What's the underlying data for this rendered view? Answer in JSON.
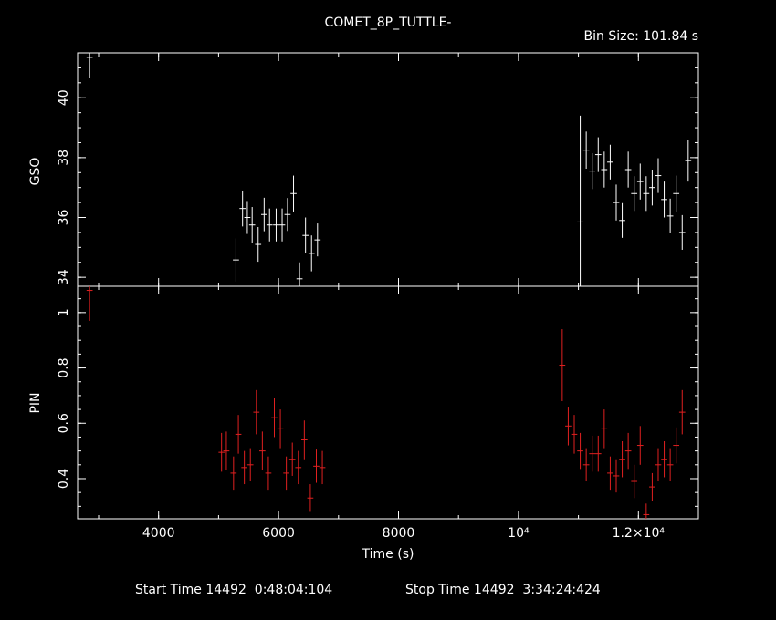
{
  "title": "COMET_8P_TUTTLE-",
  "bin_size": "Bin Size: 101.84 s",
  "footer": {
    "start": "Start Time 14492  0:48:04:104",
    "stop": "Stop Time 14492  3:34:24:424"
  },
  "colors": {
    "gso": "#ffffff",
    "pin": "#e02020"
  },
  "chart_data": [
    {
      "type": "scatter",
      "ylabel": "GSO",
      "xlim": [
        2650,
        13000
      ],
      "ylim": [
        33.7,
        41.5
      ],
      "yticks": [
        "34",
        "36",
        "38",
        "40"
      ],
      "xerr": 50.9,
      "points": [
        {
          "x": 2850,
          "y": 41.35,
          "e": 0.7
        },
        {
          "x": 5290,
          "y": 34.58,
          "e": 0.72
        },
        {
          "x": 5400,
          "y": 36.3,
          "e": 0.6
        },
        {
          "x": 5480,
          "y": 36.0,
          "e": 0.55
        },
        {
          "x": 5560,
          "y": 35.75,
          "e": 0.6
        },
        {
          "x": 5660,
          "y": 35.1,
          "e": 0.58
        },
        {
          "x": 5760,
          "y": 36.1,
          "e": 0.56
        },
        {
          "x": 5850,
          "y": 35.75,
          "e": 0.55
        },
        {
          "x": 5960,
          "y": 35.75,
          "e": 0.55
        },
        {
          "x": 6060,
          "y": 35.75,
          "e": 0.55
        },
        {
          "x": 6150,
          "y": 36.1,
          "e": 0.55
        },
        {
          "x": 6250,
          "y": 36.8,
          "e": 0.6
        },
        {
          "x": 6350,
          "y": 33.95,
          "e": 0.55
        },
        {
          "x": 6450,
          "y": 35.4,
          "e": 0.6
        },
        {
          "x": 6550,
          "y": 34.8,
          "e": 0.6
        },
        {
          "x": 6650,
          "y": 35.25,
          "e": 0.55
        },
        {
          "x": 11030,
          "y": 35.85,
          "e": 3.55
        },
        {
          "x": 11130,
          "y": 38.25,
          "e": 0.62
        },
        {
          "x": 11230,
          "y": 37.55,
          "e": 0.6
        },
        {
          "x": 11330,
          "y": 38.1,
          "e": 0.58
        },
        {
          "x": 11430,
          "y": 37.6,
          "e": 0.6
        },
        {
          "x": 11530,
          "y": 37.85,
          "e": 0.58
        },
        {
          "x": 11630,
          "y": 36.5,
          "e": 0.6
        },
        {
          "x": 11730,
          "y": 35.9,
          "e": 0.58
        },
        {
          "x": 11830,
          "y": 37.6,
          "e": 0.6
        },
        {
          "x": 11930,
          "y": 36.8,
          "e": 0.58
        },
        {
          "x": 12030,
          "y": 37.2,
          "e": 0.6
        },
        {
          "x": 12130,
          "y": 36.8,
          "e": 0.58
        },
        {
          "x": 12230,
          "y": 37.0,
          "e": 0.6
        },
        {
          "x": 12330,
          "y": 37.4,
          "e": 0.58
        },
        {
          "x": 12430,
          "y": 36.6,
          "e": 0.6
        },
        {
          "x": 12530,
          "y": 36.05,
          "e": 0.58
        },
        {
          "x": 12630,
          "y": 36.8,
          "e": 0.6
        },
        {
          "x": 12730,
          "y": 35.5,
          "e": 0.58
        },
        {
          "x": 12830,
          "y": 37.9,
          "e": 0.7
        }
      ]
    },
    {
      "type": "scatter",
      "ylabel": "PIN",
      "xlabel": "Time (s)",
      "xlim": [
        2650,
        13000
      ],
      "ylim": [
        0.255,
        1.095
      ],
      "yticks": [
        "0.4",
        "0.6",
        "0.8",
        "1"
      ],
      "xticks": [
        "4000",
        "6000",
        "8000",
        "10⁴",
        "1.2×10⁴"
      ],
      "xticks_values": [
        4000,
        6000,
        8000,
        10000,
        12000
      ],
      "xerr": 50.9,
      "points": [
        {
          "x": 2850,
          "y": 1.08,
          "e": 0.11
        },
        {
          "x": 5050,
          "y": 0.495,
          "e": 0.07
        },
        {
          "x": 5130,
          "y": 0.5,
          "e": 0.07
        },
        {
          "x": 5250,
          "y": 0.42,
          "e": 0.06
        },
        {
          "x": 5330,
          "y": 0.56,
          "e": 0.07
        },
        {
          "x": 5430,
          "y": 0.44,
          "e": 0.06
        },
        {
          "x": 5530,
          "y": 0.45,
          "e": 0.06
        },
        {
          "x": 5630,
          "y": 0.64,
          "e": 0.08
        },
        {
          "x": 5730,
          "y": 0.5,
          "e": 0.07
        },
        {
          "x": 5830,
          "y": 0.42,
          "e": 0.06
        },
        {
          "x": 5930,
          "y": 0.62,
          "e": 0.07
        },
        {
          "x": 6030,
          "y": 0.58,
          "e": 0.07
        },
        {
          "x": 6130,
          "y": 0.42,
          "e": 0.06
        },
        {
          "x": 6230,
          "y": 0.47,
          "e": 0.06
        },
        {
          "x": 6330,
          "y": 0.44,
          "e": 0.06
        },
        {
          "x": 6430,
          "y": 0.54,
          "e": 0.07
        },
        {
          "x": 6530,
          "y": 0.33,
          "e": 0.05
        },
        {
          "x": 6630,
          "y": 0.445,
          "e": 0.06
        },
        {
          "x": 6730,
          "y": 0.44,
          "e": 0.06
        },
        {
          "x": 10730,
          "y": 0.81,
          "e": 0.13
        },
        {
          "x": 10830,
          "y": 0.59,
          "e": 0.07
        },
        {
          "x": 10930,
          "y": 0.56,
          "e": 0.07
        },
        {
          "x": 11030,
          "y": 0.5,
          "e": 0.065
        },
        {
          "x": 11130,
          "y": 0.45,
          "e": 0.06
        },
        {
          "x": 11230,
          "y": 0.49,
          "e": 0.065
        },
        {
          "x": 11330,
          "y": 0.49,
          "e": 0.065
        },
        {
          "x": 11430,
          "y": 0.58,
          "e": 0.07
        },
        {
          "x": 11530,
          "y": 0.42,
          "e": 0.06
        },
        {
          "x": 11630,
          "y": 0.41,
          "e": 0.06
        },
        {
          "x": 11730,
          "y": 0.47,
          "e": 0.065
        },
        {
          "x": 11830,
          "y": 0.5,
          "e": 0.065
        },
        {
          "x": 11930,
          "y": 0.39,
          "e": 0.06
        },
        {
          "x": 12030,
          "y": 0.52,
          "e": 0.07
        },
        {
          "x": 12130,
          "y": 0.27,
          "e": 0.04
        },
        {
          "x": 12230,
          "y": 0.37,
          "e": 0.05
        },
        {
          "x": 12330,
          "y": 0.45,
          "e": 0.06
        },
        {
          "x": 12430,
          "y": 0.47,
          "e": 0.065
        },
        {
          "x": 12530,
          "y": 0.45,
          "e": 0.06
        },
        {
          "x": 12630,
          "y": 0.52,
          "e": 0.065
        },
        {
          "x": 12730,
          "y": 0.64,
          "e": 0.08
        }
      ]
    }
  ]
}
